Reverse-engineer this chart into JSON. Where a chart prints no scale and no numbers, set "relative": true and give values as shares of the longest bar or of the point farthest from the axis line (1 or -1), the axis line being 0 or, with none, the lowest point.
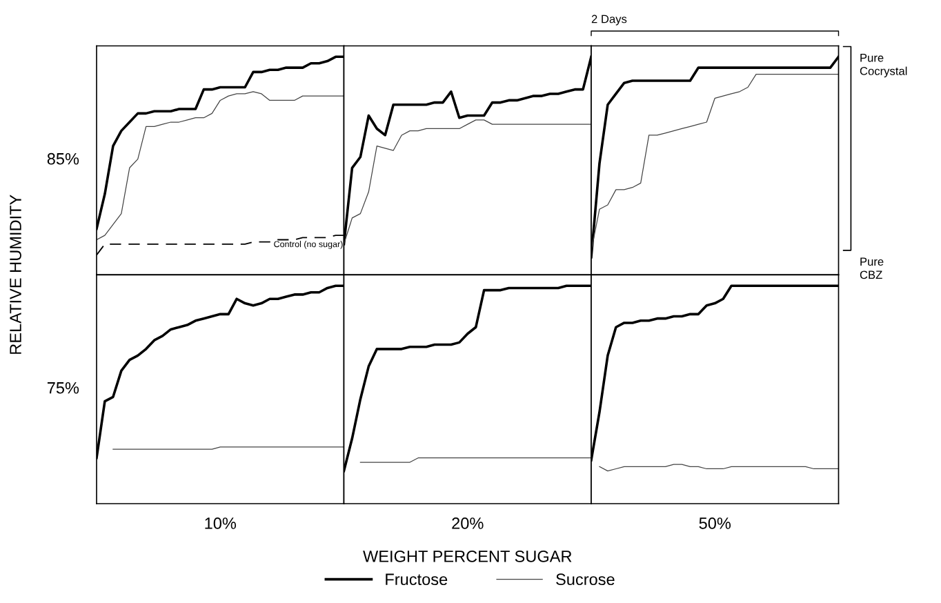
{
  "chart_data": [
    {
      "type": "line",
      "relative": true,
      "ylabel": "85%",
      "categories": [
        null,
        null,
        null,
        null,
        null,
        null,
        null,
        null,
        null,
        null,
        null,
        null,
        null,
        null,
        null,
        null,
        null,
        null,
        null,
        null,
        null,
        null,
        null,
        null,
        null,
        null,
        null,
        null,
        null,
        null,
        null
      ],
      "series": [
        {
          "color": "#000000",
          "values": [
            0.21,
            0.37,
            0.59,
            0.66,
            0.7,
            0.74,
            0.74,
            0.75,
            0.75,
            0.75,
            0.76,
            0.76,
            0.76,
            0.85,
            0.85,
            0.86,
            0.86,
            0.86,
            0.86,
            0.93,
            0.93,
            0.94,
            0.94,
            0.95,
            0.95,
            0.95,
            0.97,
            0.97,
            0.98,
            1.0,
            1.0
          ]
        },
        {
          "color": "#444444",
          "values": [
            0.16,
            0.18,
            0.23,
            0.28,
            0.49,
            0.53,
            0.68,
            0.68,
            0.69,
            0.7,
            0.7,
            0.71,
            0.72,
            0.72,
            0.74,
            0.8,
            0.82,
            0.83,
            0.83,
            0.84,
            0.83,
            0.8,
            0.8,
            0.8,
            0.8,
            0.82,
            0.82,
            0.82,
            0.82,
            0.82,
            0.82
          ]
        },
        {
          "name": "Control (no sugar)",
          "color": "#000000",
          "line_style": "dashed",
          "values": [
            0.09,
            0.14,
            0.14,
            0.14,
            0.14,
            0.14,
            0.14,
            0.14,
            0.14,
            0.14,
            0.14,
            0.14,
            0.14,
            0.14,
            0.14,
            0.14,
            0.14,
            0.14,
            0.14,
            0.15,
            0.15,
            0.15,
            0.16,
            0.16,
            0.16,
            0.17,
            0.17,
            0.17,
            0.17,
            0.18,
            0.18
          ]
        }
      ]
    },
    {
      "type": "line",
      "relative": true,
      "categories": [
        null,
        null,
        null,
        null,
        null,
        null,
        null,
        null,
        null,
        null,
        null,
        null,
        null,
        null,
        null,
        null,
        null,
        null,
        null,
        null,
        null,
        null,
        null,
        null,
        null,
        null,
        null,
        null,
        null,
        null,
        null
      ],
      "series": [
        {
          "color": "#000000",
          "values": [
            0.14,
            0.49,
            0.54,
            0.73,
            0.67,
            0.64,
            0.78,
            0.78,
            0.78,
            0.78,
            0.78,
            0.79,
            0.79,
            0.84,
            0.72,
            0.73,
            0.73,
            0.73,
            0.79,
            0.79,
            0.8,
            0.8,
            0.81,
            0.82,
            0.82,
            0.83,
            0.83,
            0.84,
            0.85,
            0.85,
            1.0
          ]
        },
        {
          "color": "#444444",
          "values": [
            0.14,
            0.26,
            0.28,
            0.38,
            0.59,
            0.58,
            0.57,
            0.64,
            0.66,
            0.66,
            0.67,
            0.67,
            0.67,
            0.67,
            0.67,
            0.69,
            0.71,
            0.71,
            0.69,
            0.69,
            0.69,
            0.69,
            0.69,
            0.69,
            0.69,
            0.69,
            0.69,
            0.69,
            0.69,
            0.69,
            0.69
          ]
        }
      ]
    },
    {
      "type": "line",
      "relative": true,
      "categories": [
        null,
        null,
        null,
        null,
        null,
        null,
        null,
        null,
        null,
        null,
        null,
        null,
        null,
        null,
        null,
        null,
        null,
        null,
        null,
        null,
        null,
        null,
        null,
        null,
        null,
        null,
        null,
        null,
        null,
        null,
        null
      ],
      "annotations": [
        "2 Days",
        "Pure Cocrystal",
        "Pure CBZ"
      ],
      "series": [
        {
          "color": "#000000",
          "values": [
            0.08,
            0.51,
            0.78,
            0.83,
            0.88,
            0.89,
            0.89,
            0.89,
            0.89,
            0.89,
            0.89,
            0.89,
            0.89,
            0.95,
            0.95,
            0.95,
            0.95,
            0.95,
            0.95,
            0.95,
            0.95,
            0.95,
            0.95,
            0.95,
            0.95,
            0.95,
            0.95,
            0.95,
            0.95,
            0.95,
            1.0
          ]
        },
        {
          "color": "#444444",
          "values": [
            0.11,
            0.3,
            0.32,
            0.39,
            0.39,
            0.4,
            0.42,
            0.64,
            0.64,
            0.65,
            0.66,
            0.67,
            0.68,
            0.69,
            0.7,
            0.81,
            0.82,
            0.83,
            0.84,
            0.86,
            0.92,
            0.92,
            0.92,
            0.92,
            0.92,
            0.92,
            0.92,
            0.92,
            0.92,
            0.92,
            0.92
          ]
        }
      ]
    },
    {
      "type": "line",
      "relative": true,
      "ylabel": "75%",
      "xlabel": "10%",
      "categories": [
        null,
        null,
        null,
        null,
        null,
        null,
        null,
        null,
        null,
        null,
        null,
        null,
        null,
        null,
        null,
        null,
        null,
        null,
        null,
        null,
        null,
        null,
        null,
        null,
        null,
        null,
        null,
        null,
        null,
        null,
        null
      ],
      "annotations": [
        "RELATIVE HUMIDITY"
      ],
      "series": [
        {
          "color": "#000000",
          "values": [
            0.21,
            0.47,
            0.49,
            0.61,
            0.66,
            0.68,
            0.71,
            0.75,
            0.77,
            0.8,
            0.81,
            0.82,
            0.84,
            0.85,
            0.86,
            0.87,
            0.87,
            0.94,
            0.92,
            0.91,
            0.92,
            0.94,
            0.94,
            0.95,
            0.96,
            0.96,
            0.97,
            0.97,
            0.99,
            1.0,
            1.0
          ]
        },
        {
          "color": "#444444",
          "values": [
            null,
            null,
            0.25,
            0.25,
            0.25,
            0.25,
            0.25,
            0.25,
            0.25,
            0.25,
            0.25,
            0.25,
            0.25,
            0.25,
            0.25,
            0.26,
            0.26,
            0.26,
            0.26,
            0.26,
            0.26,
            0.26,
            0.26,
            0.26,
            0.26,
            0.26,
            0.26,
            0.26,
            0.26,
            0.26,
            0.26
          ]
        }
      ]
    },
    {
      "type": "line",
      "relative": true,
      "xlabel": "20%",
      "categories": [
        null,
        null,
        null,
        null,
        null,
        null,
        null,
        null,
        null,
        null,
        null,
        null,
        null,
        null,
        null,
        null,
        null,
        null,
        null,
        null,
        null,
        null,
        null,
        null,
        null,
        null,
        null,
        null,
        null,
        null,
        null
      ],
      "legend": "bottom",
      "annotations": [
        "WEIGHT PERCENT SUGAR"
      ],
      "series": [
        {
          "name": "Fructose",
          "color": "#000000",
          "values": [
            0.15,
            0.3,
            0.48,
            0.63,
            0.71,
            0.71,
            0.71,
            0.71,
            0.72,
            0.72,
            0.72,
            0.73,
            0.73,
            0.73,
            0.74,
            0.78,
            0.81,
            0.98,
            0.98,
            0.98,
            0.99,
            0.99,
            0.99,
            0.99,
            0.99,
            0.99,
            0.99,
            1.0,
            1.0,
            1.0,
            1.0
          ]
        },
        {
          "name": "Sucrose",
          "color": "#444444",
          "values": [
            null,
            null,
            0.19,
            0.19,
            0.19,
            0.19,
            0.19,
            0.19,
            0.19,
            0.21,
            0.21,
            0.21,
            0.21,
            0.21,
            0.21,
            0.21,
            0.21,
            0.21,
            0.21,
            0.21,
            0.21,
            0.21,
            0.21,
            0.21,
            0.21,
            0.21,
            0.21,
            0.21,
            0.21,
            0.21,
            0.21
          ]
        }
      ]
    },
    {
      "type": "line",
      "relative": true,
      "xlabel": "50%",
      "categories": [
        null,
        null,
        null,
        null,
        null,
        null,
        null,
        null,
        null,
        null,
        null,
        null,
        null,
        null,
        null,
        null,
        null,
        null,
        null,
        null,
        null,
        null,
        null,
        null,
        null,
        null,
        null,
        null,
        null,
        null,
        null
      ],
      "series": [
        {
          "color": "#000000",
          "values": [
            0.2,
            0.42,
            0.68,
            0.81,
            0.83,
            0.83,
            0.84,
            0.84,
            0.85,
            0.85,
            0.86,
            0.86,
            0.87,
            0.87,
            0.91,
            0.92,
            0.94,
            1.0,
            1.0,
            1.0,
            1.0,
            1.0,
            1.0,
            1.0,
            1.0,
            1.0,
            1.0,
            1.0,
            1.0,
            1.0,
            1.0
          ]
        },
        {
          "color": "#444444",
          "values": [
            null,
            0.17,
            0.15,
            0.16,
            0.17,
            0.17,
            0.17,
            0.17,
            0.17,
            0.17,
            0.18,
            0.18,
            0.17,
            0.17,
            0.16,
            0.16,
            0.16,
            0.17,
            0.17,
            0.17,
            0.17,
            0.17,
            0.17,
            0.17,
            0.17,
            0.17,
            0.17,
            0.16,
            0.16,
            0.16,
            0.16
          ]
        }
      ]
    }
  ]
}
